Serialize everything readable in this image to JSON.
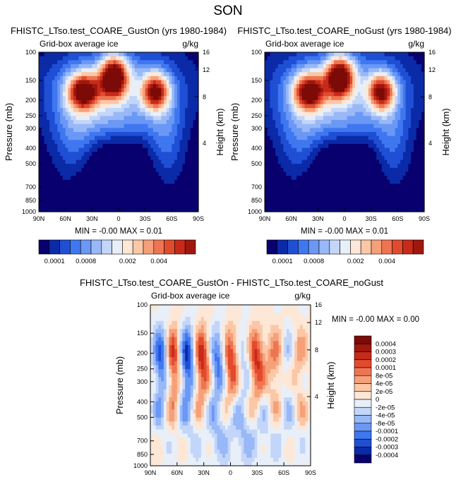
{
  "figure_title": "SON",
  "colors": {
    "diverging": [
      "#08006e",
      "#0a2aa8",
      "#1f4fd4",
      "#3f77f0",
      "#6b98f5",
      "#98b8f7",
      "#c3d6f9",
      "#e8eff9",
      "#fde7d6",
      "#fbc7a6",
      "#f6a07a",
      "#ef7552",
      "#e24a2e",
      "#c82a1a",
      "#a0170e",
      "#7c0a06"
    ],
    "panel_bg": "#08006e"
  },
  "chart_data": [
    {
      "type": "heatmap",
      "title": "FHISTC_LTso.test_COARE_GustOn (yrs 1980-1984)",
      "subtitle_left": "Grid-box average ice",
      "subtitle_right": "g/kg",
      "xlabel": "",
      "ylabel": "Pressure (mb)",
      "ylabel_right": "Height (km)",
      "x_ticks": [
        "90N",
        "60N",
        "30N",
        "0",
        "30S",
        "60S",
        "90S"
      ],
      "y_ticks": [
        "100",
        "150",
        "200",
        "250",
        "300",
        "400",
        "500",
        "700",
        "850",
        "1000"
      ],
      "y_right_ticks": [
        "16",
        "12",
        "8",
        "4"
      ],
      "stats": "MIN =  -0.00   MAX =   0.01",
      "field": "ice_mean",
      "colorbar": {
        "orientation": "horizontal",
        "labels": [
          "0.0001",
          "0.0008",
          "0.002",
          "0.004"
        ],
        "n_colors": 15
      }
    },
    {
      "type": "heatmap",
      "title": "FHISTC_LTso.test_COARE_noGust (yrs 1980-1984)",
      "subtitle_left": "Grid-box average ice",
      "subtitle_right": "g/kg",
      "xlabel": "",
      "ylabel": "Pressure (mb)",
      "ylabel_right": "Height (km)",
      "x_ticks": [
        "90N",
        "60N",
        "30N",
        "0",
        "30S",
        "60S",
        "90S"
      ],
      "y_ticks": [
        "100",
        "150",
        "200",
        "250",
        "300",
        "400",
        "500",
        "700",
        "850",
        "1000"
      ],
      "y_right_ticks": [
        "16",
        "12",
        "8",
        "4"
      ],
      "stats": "MIN =  -0.00   MAX =   0.01",
      "field": "ice_mean",
      "colorbar": {
        "orientation": "horizontal",
        "labels": [
          "0.0001",
          "0.0008",
          "0.002",
          "0.004"
        ],
        "n_colors": 15
      }
    },
    {
      "type": "heatmap",
      "title": "FHISTC_LTso.test_COARE_GustOn - FHISTC_LTso.test_COARE_noGust",
      "subtitle_left": "Grid-box average ice",
      "subtitle_right": "g/kg",
      "xlabel": "",
      "ylabel": "Pressure (mb)",
      "ylabel_right": "Height (km)",
      "x_ticks": [
        "90N",
        "60N",
        "30N",
        "0",
        "30S",
        "60S",
        "90S"
      ],
      "y_ticks": [
        "100",
        "150",
        "200",
        "250",
        "300",
        "400",
        "500",
        "700",
        "850",
        "1000"
      ],
      "y_right_ticks": [
        "16",
        "12",
        "8",
        "4"
      ],
      "stats": "MIN =  -0.00   MAX =   0.00",
      "field": "ice_diff",
      "colorbar": {
        "orientation": "vertical",
        "labels": [
          "0.0004",
          "0.0003",
          "0.0002",
          "0.0001",
          "8e-05",
          "4e-05",
          "2e-05",
          "0",
          "-2e-05",
          "-4e-05",
          "-8e-05",
          "-0.0001",
          "-0.0002",
          "-0.0003",
          "-0.0004"
        ],
        "n_colors": 16
      }
    }
  ]
}
